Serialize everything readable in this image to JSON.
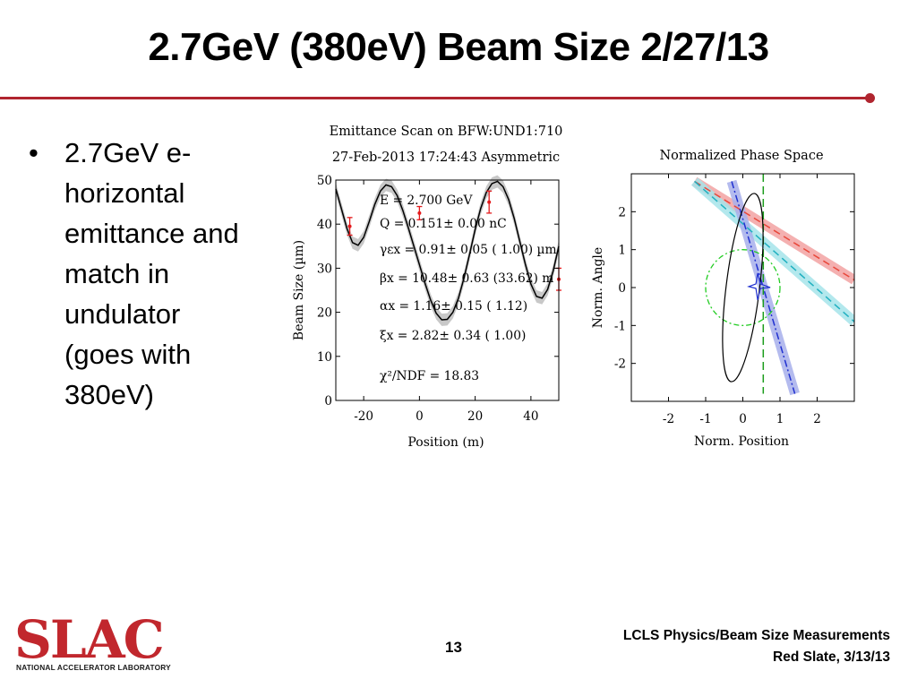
{
  "slide": {
    "title": "2.7GeV (380eV) Beam Size 2/27/13",
    "bullets": [
      {
        "lines": [
          "2.7GeV e-",
          "horizontal",
          "emittance and",
          "match in",
          "undulator",
          "(goes with",
          "380eV)"
        ]
      }
    ],
    "footer": {
      "line1": "LCLS Physics/Beam Size Measurements",
      "line2": "Red Slate, 3/13/13",
      "page_number": "13"
    },
    "logo": {
      "text": "SLAC",
      "subtext": "NATIONAL ACCELERATOR LABORATORY"
    },
    "colors": {
      "accent_red": "#b0252f",
      "logo_red": "#c1272d",
      "logo_dark": "#222222"
    }
  },
  "chart_data": [
    {
      "type": "line",
      "title": "Emittance Scan on BFW:UND1:710",
      "subtitle": "27-Feb-2013 17:24:43 Asymmetric",
      "xlabel": "Position  (m)",
      "ylabel": "Beam Size  (µm)",
      "xlim": [
        -30,
        50
      ],
      "ylim": [
        0,
        50
      ],
      "xticks": [
        -20,
        0,
        20,
        40
      ],
      "yticks": [
        0,
        10,
        20,
        30,
        40,
        50
      ],
      "fit_curve": {
        "x": [
          -30,
          -28,
          -26,
          -24,
          -22,
          -20,
          -18,
          -16,
          -14,
          -12,
          -10,
          -8,
          -6,
          -4,
          -2,
          0,
          2,
          4,
          6,
          8,
          10,
          12,
          14,
          16,
          18,
          20,
          22,
          24,
          26,
          28,
          30,
          32,
          34,
          36,
          38,
          40,
          42,
          44,
          46,
          48,
          50
        ],
        "y": [
          48.0,
          43.5,
          39.0,
          35.8,
          35.2,
          37.0,
          40.6,
          44.5,
          47.5,
          48.9,
          48.5,
          46.5,
          43.2,
          39.2,
          35.0,
          30.8,
          26.6,
          22.8,
          19.8,
          18.3,
          18.4,
          20.0,
          23.2,
          27.8,
          33.2,
          38.8,
          43.6,
          47.2,
          49.2,
          49.7,
          48.5,
          45.6,
          41.3,
          36.1,
          30.9,
          26.4,
          23.6,
          23.2,
          25.2,
          29.4,
          35.0
        ]
      },
      "band_half_width": 1.4,
      "measurements": [
        {
          "x": -25,
          "y": 39.5,
          "err": 2.0
        },
        {
          "x": 0,
          "y": 42.5,
          "err": 1.5
        },
        {
          "x": 25,
          "y": 45.0,
          "err": 2.5
        },
        {
          "x": 50,
          "y": 27.5,
          "err": 2.5
        }
      ],
      "annotations": [
        "E  = 2.700 GeV",
        "Q  = 0.151± 0.00 nC",
        "γεx  =  0.91± 0.05 ( 1.00) µm",
        "βx  = 10.48± 0.63 (33.62) m",
        "αx  =  1.16± 0.15 ( 1.12)",
        "ξx  =  2.82± 0.34 ( 1.00)",
        "χ²/NDF =  18.83"
      ],
      "colors": {
        "curve": "#000000",
        "band": "#c8c8c8",
        "points": "#e41a1c"
      }
    },
    {
      "type": "line",
      "title": "Normalized Phase Space",
      "xlabel": "Norm. Position",
      "ylabel": "Norm. Angle",
      "xlim": [
        -3,
        3
      ],
      "ylim": [
        -3,
        3
      ],
      "xticks": [
        -2,
        -1,
        0,
        1,
        2
      ],
      "yticks": [
        -2,
        -1,
        0,
        1,
        2
      ],
      "design_circle": {
        "cx": 0,
        "cy": 0,
        "r": 1
      },
      "ellipse": {
        "cx": 0.0,
        "cy": 0.0,
        "semi_major": 2.5,
        "semi_minor": 0.45,
        "angle_deg": 97
      },
      "lines": [
        {
          "name": "",
          "color": "#e8473a",
          "band": "#f3a3a3",
          "x": [
            -1.3,
            3.0
          ],
          "y": [
            2.8,
            0.2
          ]
        },
        {
          "name": "",
          "color": "#20b0c0",
          "band": "#a6e4ea",
          "x": [
            -1.3,
            3.0
          ],
          "y": [
            2.8,
            -0.9
          ]
        },
        {
          "name": "",
          "color": "#2030d0",
          "band": "#a8b0ec",
          "x": [
            -0.3,
            1.4
          ],
          "y": [
            2.8,
            -2.8
          ]
        },
        {
          "name": "",
          "color": "#1a9c1a",
          "band": "#9ed89e",
          "x": [
            0.55,
            0.55
          ],
          "y": [
            3.0,
            -2.8
          ]
        }
      ],
      "star_center": [
        0.4,
        0.05
      ]
    }
  ]
}
